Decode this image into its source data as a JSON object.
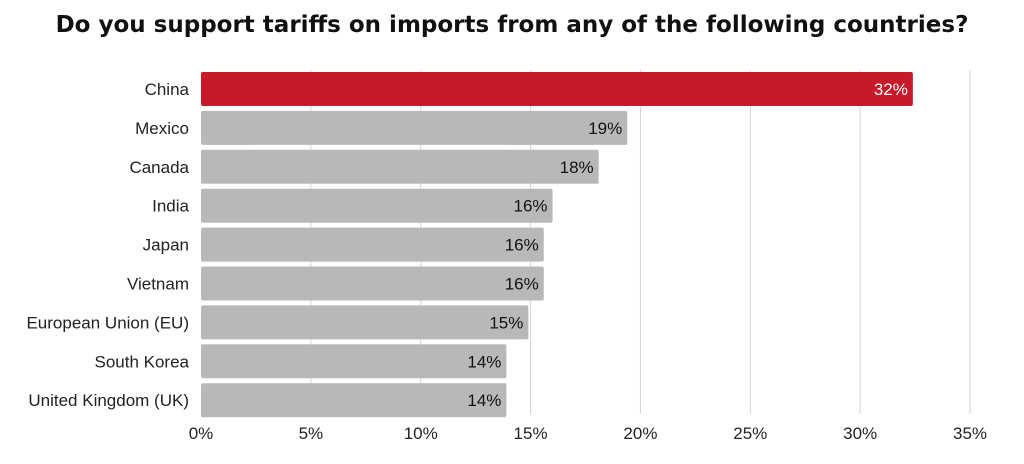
{
  "chart_data": {
    "type": "bar",
    "orientation": "horizontal",
    "title": "Do you support tariffs on imports from any of the following countries?",
    "categories": [
      "China",
      "Mexico",
      "Canada",
      "India",
      "Japan",
      "Vietnam",
      "European Union (EU)",
      "South Korea",
      "United Kingdom (UK)"
    ],
    "values": [
      32.4,
      19.4,
      18.1,
      16.0,
      15.6,
      15.6,
      14.9,
      13.9,
      13.9
    ],
    "value_labels": [
      "32%",
      "19%",
      "18%",
      "16%",
      "16%",
      "16%",
      "15%",
      "14%",
      "14%"
    ],
    "xlim": [
      0,
      35
    ],
    "xticks": [
      0,
      5,
      10,
      15,
      20,
      25,
      30,
      35
    ],
    "xtick_labels": [
      "0%",
      "5%",
      "10%",
      "15%",
      "20%",
      "25%",
      "30%",
      "35%"
    ],
    "grid": "vertical",
    "legend": "none",
    "colors": {
      "highlight": "#c8192a",
      "default": "#b8b8b8",
      "highlight_label": "#ffffff",
      "default_label": "#111111"
    },
    "highlight_index": 0
  }
}
